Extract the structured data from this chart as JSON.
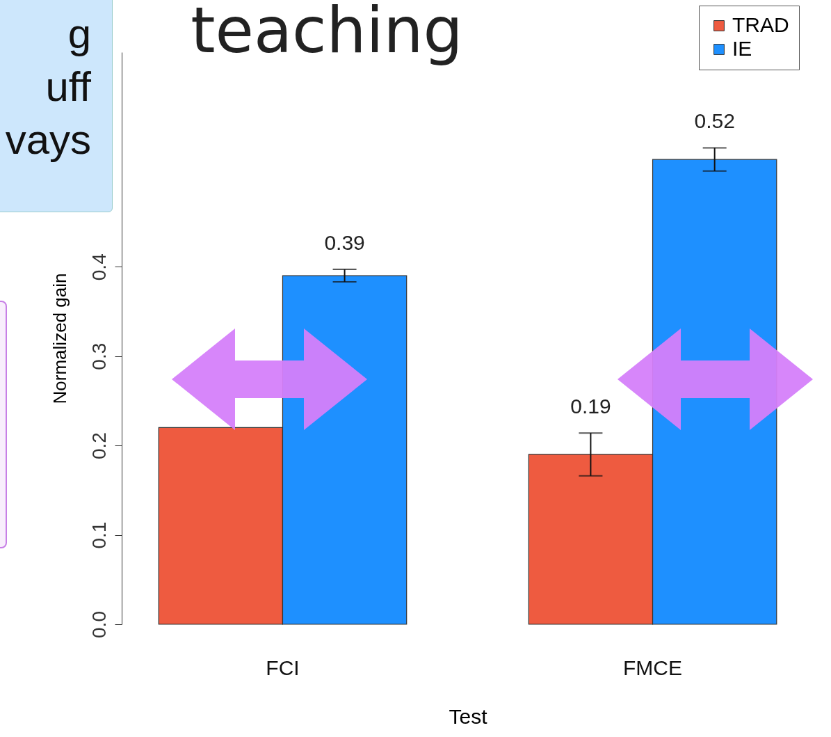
{
  "chart_data": {
    "type": "bar",
    "title": "teaching",
    "xlabel": "Test",
    "ylabel": "Normalized gain",
    "categories": [
      "FCI",
      "FMCE"
    ],
    "series": [
      {
        "name": "TRAD",
        "color": "#ee5b40",
        "values": [
          0.22,
          0.19
        ],
        "errors": [
          null,
          0.024
        ],
        "value_labels": [
          null,
          "0.19"
        ]
      },
      {
        "name": "IE",
        "color": "#1e90ff",
        "values": [
          0.39,
          0.52
        ],
        "errors": [
          0.007,
          0.013
        ],
        "value_labels": [
          "0.39",
          "0.52"
        ]
      }
    ],
    "ylim": [
      0,
      0.64
    ],
    "yticks": [
      {
        "value": 0,
        "label": "0.0"
      },
      0.1,
      0.2,
      0.3,
      0.4
    ],
    "grid": false,
    "legend": "top right",
    "annotations": [
      "g",
      "uff",
      "vays"
    ]
  }
}
